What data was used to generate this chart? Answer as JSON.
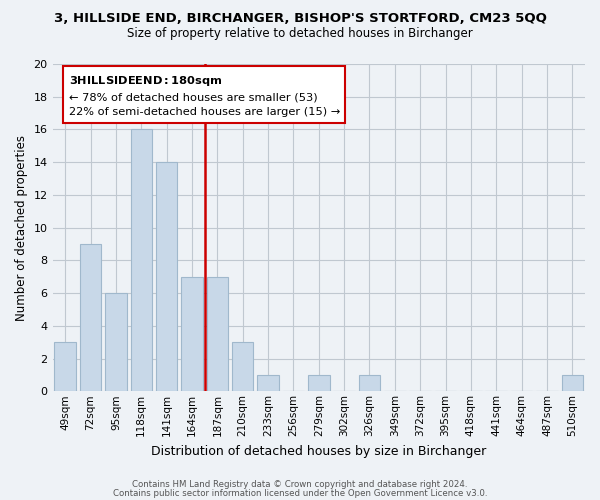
{
  "title": "3, HILLSIDE END, BIRCHANGER, BISHOP'S STORTFORD, CM23 5QQ",
  "subtitle": "Size of property relative to detached houses in Birchanger",
  "xlabel": "Distribution of detached houses by size in Birchanger",
  "ylabel": "Number of detached properties",
  "bar_color": "#c8d8e8",
  "bar_edge_color": "#a0b8cc",
  "categories": [
    "49sqm",
    "72sqm",
    "95sqm",
    "118sqm",
    "141sqm",
    "164sqm",
    "187sqm",
    "210sqm",
    "233sqm",
    "256sqm",
    "279sqm",
    "302sqm",
    "326sqm",
    "349sqm",
    "372sqm",
    "395sqm",
    "418sqm",
    "441sqm",
    "464sqm",
    "487sqm",
    "510sqm"
  ],
  "values": [
    3,
    9,
    6,
    16,
    14,
    7,
    7,
    3,
    1,
    0,
    1,
    0,
    1,
    0,
    0,
    0,
    0,
    0,
    0,
    0,
    1
  ],
  "vline_pos": 6.0,
  "vline_color": "#cc0000",
  "annotation_title": "3 HILLSIDE END: 180sqm",
  "annotation_line1": "← 78% of detached houses are smaller (53)",
  "annotation_line2": "22% of semi-detached houses are larger (15) →",
  "annotation_box_color": "#ffffff",
  "annotation_box_edge": "#cc0000",
  "ylim": [
    0,
    20
  ],
  "yticks": [
    0,
    2,
    4,
    6,
    8,
    10,
    12,
    14,
    16,
    18,
    20
  ],
  "footer_line1": "Contains HM Land Registry data © Crown copyright and database right 2024.",
  "footer_line2": "Contains public sector information licensed under the Open Government Licence v3.0.",
  "grid_color": "#c0c8d0",
  "background_color": "#eef2f6"
}
